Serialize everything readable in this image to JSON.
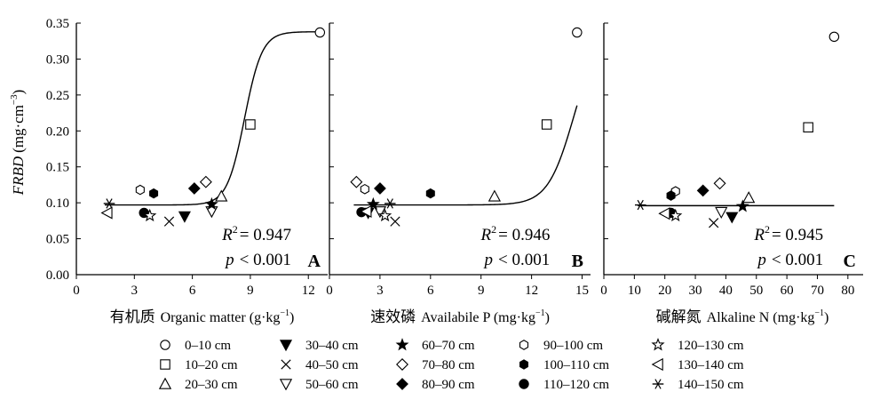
{
  "y_axis": {
    "label_prefix": "FRBD",
    "label_unit": "(mg·cm",
    "label_exp": "−3",
    "label_close": ")",
    "ticks": [
      "0.00",
      "0.05",
      "0.10",
      "0.15",
      "0.20",
      "0.25",
      "0.30",
      "0.35"
    ]
  },
  "legend": {
    "items": [
      {
        "label": "0–10 cm",
        "marker": "circle-open"
      },
      {
        "label": "10–20 cm",
        "marker": "square-open"
      },
      {
        "label": "20–30 cm",
        "marker": "triangle-up-open"
      },
      {
        "label": "30–40 cm",
        "marker": "triangle-down-filled"
      },
      {
        "label": "40–50 cm",
        "marker": "x-cross"
      },
      {
        "label": "50–60 cm",
        "marker": "triangle-down-open"
      },
      {
        "label": "60–70 cm",
        "marker": "star-filled"
      },
      {
        "label": "70–80 cm",
        "marker": "diamond-open"
      },
      {
        "label": "80–90 cm",
        "marker": "diamond-filled"
      },
      {
        "label": "90–100 cm",
        "marker": "hexagon-open"
      },
      {
        "label": "100–110 cm",
        "marker": "hexagon-filled"
      },
      {
        "label": "110–120 cm",
        "marker": "circle-filled"
      },
      {
        "label": "120–130 cm",
        "marker": "star-open"
      },
      {
        "label": "130–140 cm",
        "marker": "triangle-left-open"
      },
      {
        "label": "140–150 cm",
        "marker": "asterisk"
      }
    ]
  },
  "chart_data": [
    {
      "panel": "A",
      "type": "scatter",
      "xlabel_cn": "有机质",
      "xlabel_en": "Organic matter (g·kg",
      "xlabel_exp": "−1",
      "xlabel_close": ")",
      "xlim": [
        0,
        13
      ],
      "ylim": [
        0,
        0.35
      ],
      "xticks": [
        "0",
        "3",
        "6",
        "9",
        "12"
      ],
      "r2": "= 0.947",
      "p": "< 0.001",
      "fit": {
        "base": 0.097,
        "amp": 0.241,
        "x0": 8.7,
        "k": 2.2
      },
      "points": [
        {
          "depth": "0–10 cm",
          "x": 12.6,
          "y": 0.337
        },
        {
          "depth": "10–20 cm",
          "x": 9.0,
          "y": 0.209
        },
        {
          "depth": "20–30 cm",
          "x": 7.5,
          "y": 0.109
        },
        {
          "depth": "30–40 cm",
          "x": 5.6,
          "y": 0.081
        },
        {
          "depth": "40–50 cm",
          "x": 4.8,
          "y": 0.074
        },
        {
          "depth": "50–60 cm",
          "x": 7.0,
          "y": 0.088
        },
        {
          "depth": "60–70 cm",
          "x": 7.0,
          "y": 0.098
        },
        {
          "depth": "70–80 cm",
          "x": 6.7,
          "y": 0.129
        },
        {
          "depth": "80–90 cm",
          "x": 6.1,
          "y": 0.12
        },
        {
          "depth": "90–100 cm",
          "x": 3.3,
          "y": 0.118
        },
        {
          "depth": "100–110 cm",
          "x": 4.0,
          "y": 0.113
        },
        {
          "depth": "110–120 cm",
          "x": 3.5,
          "y": 0.086
        },
        {
          "depth": "120–130 cm",
          "x": 3.8,
          "y": 0.082
        },
        {
          "depth": "130–140 cm",
          "x": 1.6,
          "y": 0.086
        },
        {
          "depth": "140–150 cm",
          "x": 1.7,
          "y": 0.099
        }
      ]
    },
    {
      "panel": "B",
      "type": "scatter",
      "xlabel_cn": "速效磷",
      "xlabel_en": "Availabile P (mg·kg",
      "xlabel_exp": "−1",
      "xlabel_close": ")",
      "xlim": [
        0,
        15.5
      ],
      "ylim": [
        0,
        0.35
      ],
      "xticks": [
        "0",
        "3",
        "6",
        "9",
        "12",
        "15"
      ],
      "r2": "= 0.946",
      "p": "< 0.001",
      "fit": {
        "base": 0.097,
        "amp": 0.245,
        "x0": 14.5,
        "k": 1.3
      },
      "points": [
        {
          "depth": "0–10 cm",
          "x": 14.7,
          "y": 0.337
        },
        {
          "depth": "10–20 cm",
          "x": 12.9,
          "y": 0.209
        },
        {
          "depth": "20–30 cm",
          "x": 9.8,
          "y": 0.109
        },
        {
          "depth": "30–40 cm",
          "x": 2.3,
          "y": 0.086
        },
        {
          "depth": "40–50 cm",
          "x": 3.9,
          "y": 0.074
        },
        {
          "depth": "50–60 cm",
          "x": 3.0,
          "y": 0.088
        },
        {
          "depth": "60–70 cm",
          "x": 2.6,
          "y": 0.098
        },
        {
          "depth": "70–80 cm",
          "x": 1.6,
          "y": 0.129
        },
        {
          "depth": "80–90 cm",
          "x": 3.0,
          "y": 0.12
        },
        {
          "depth": "90–100 cm",
          "x": 2.1,
          "y": 0.119
        },
        {
          "depth": "100–110 cm",
          "x": 6.0,
          "y": 0.113
        },
        {
          "depth": "110–120 cm",
          "x": 1.9,
          "y": 0.087
        },
        {
          "depth": "120–130 cm",
          "x": 3.3,
          "y": 0.082
        },
        {
          "depth": "130–140 cm",
          "x": 2.2,
          "y": 0.088
        },
        {
          "depth": "140–150 cm",
          "x": 3.6,
          "y": 0.099
        }
      ]
    },
    {
      "panel": "C",
      "type": "scatter",
      "xlabel_cn": "碱解氮",
      "xlabel_en": "Alkaline N (mg·kg",
      "xlabel_exp": "−1",
      "xlabel_close": ")",
      "xlim": [
        0,
        85
      ],
      "ylim": [
        0,
        0.35
      ],
      "xticks": [
        "0",
        "10",
        "20",
        "30",
        "40",
        "50",
        "60",
        "70",
        "80"
      ],
      "r2": "= 0.945",
      "p": "< 0.001",
      "fit": {
        "base": 0.096,
        "amp": 0.8,
        "x0": 86.0,
        "k": 9.0
      },
      "points": [
        {
          "depth": "0–10 cm",
          "x": 75.5,
          "y": 0.331
        },
        {
          "depth": "10–20 cm",
          "x": 67.0,
          "y": 0.205
        },
        {
          "depth": "20–30 cm",
          "x": 47.5,
          "y": 0.107
        },
        {
          "depth": "30–40 cm",
          "x": 42.0,
          "y": 0.08
        },
        {
          "depth": "40–50 cm",
          "x": 36.0,
          "y": 0.072
        },
        {
          "depth": "50–60 cm",
          "x": 38.5,
          "y": 0.087
        },
        {
          "depth": "60–70 cm",
          "x": 45.5,
          "y": 0.095
        },
        {
          "depth": "70–80 cm",
          "x": 38.0,
          "y": 0.127
        },
        {
          "depth": "80–90 cm",
          "x": 32.5,
          "y": 0.117
        },
        {
          "depth": "90–100 cm",
          "x": 23.5,
          "y": 0.116
        },
        {
          "depth": "100–110 cm",
          "x": 22.0,
          "y": 0.11
        },
        {
          "depth": "110–120 cm",
          "x": 22.0,
          "y": 0.086
        },
        {
          "depth": "120–130 cm",
          "x": 23.5,
          "y": 0.082
        },
        {
          "depth": "130–140 cm",
          "x": 20.0,
          "y": 0.085
        },
        {
          "depth": "140–150 cm",
          "x": 12.0,
          "y": 0.097
        }
      ]
    }
  ]
}
